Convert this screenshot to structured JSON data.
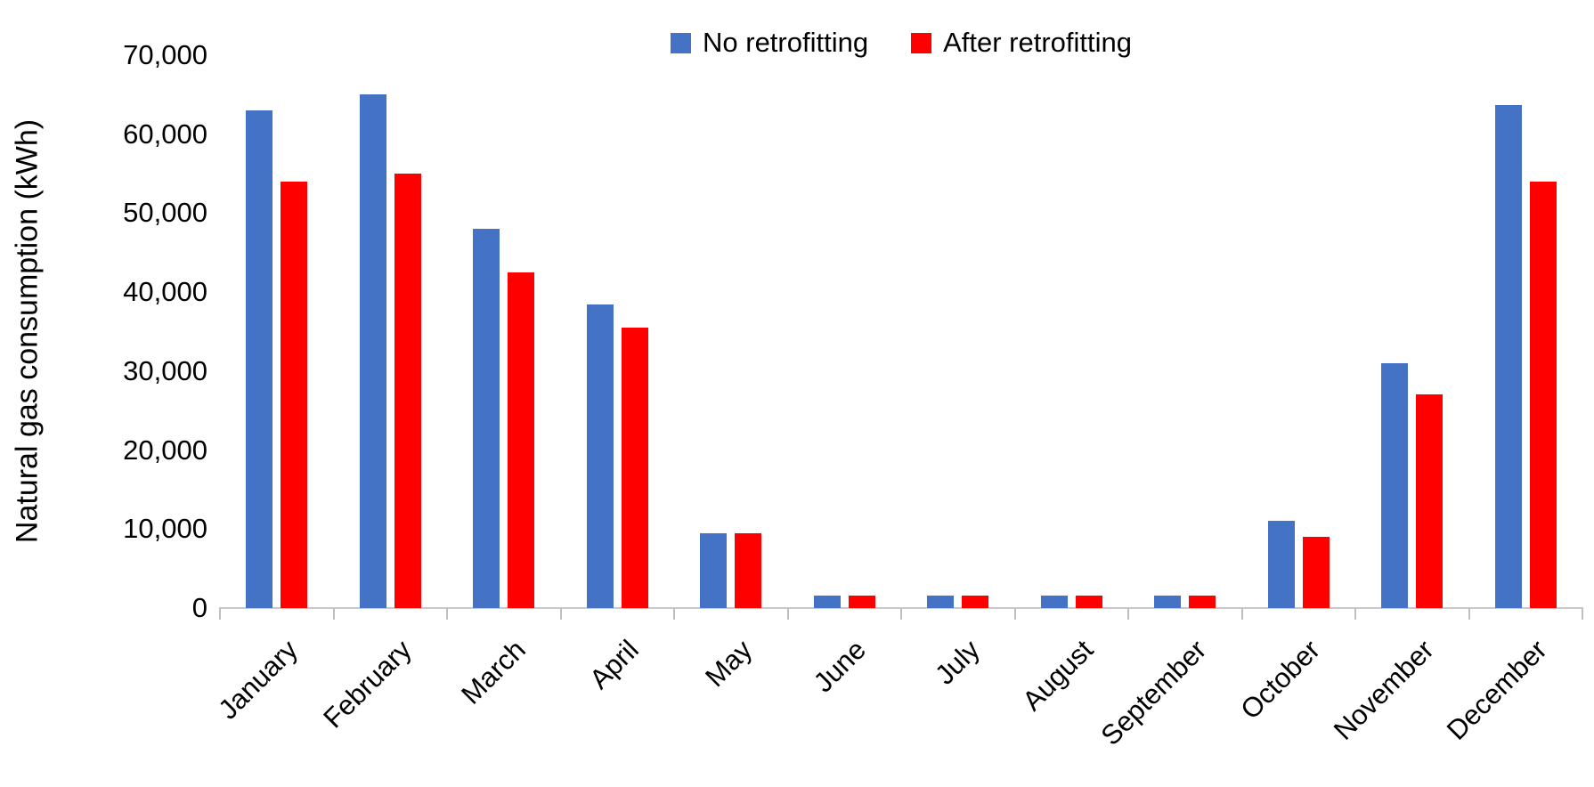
{
  "chart_data": {
    "type": "bar",
    "title": "",
    "ylabel": "Natural gas consumption (kWh)",
    "xlabel": "",
    "categories": [
      "January",
      "February",
      "March",
      "April",
      "May",
      "June",
      "July",
      "August",
      "September",
      "October",
      "November",
      "December"
    ],
    "series": [
      {
        "name": "No retrofitting",
        "color": "#4472C4",
        "values": [
          63000,
          65000,
          48000,
          38400,
          9500,
          1600,
          1600,
          1600,
          1600,
          11000,
          31000,
          63700
        ]
      },
      {
        "name": "After retrofitting",
        "color": "#FF0000",
        "values": [
          54000,
          55000,
          42500,
          35500,
          9500,
          1600,
          1600,
          1600,
          1600,
          9000,
          27000,
          54000
        ]
      }
    ],
    "ylim": [
      0,
      70000
    ],
    "ytick_step": 10000,
    "ytick_labels": [
      "0",
      "10,000",
      "20,000",
      "30,000",
      "40,000",
      "50,000",
      "60,000",
      "70,000"
    ],
    "legend_position": "top",
    "grid": false,
    "axis_color": "#C9C9C9",
    "tick_color": "#BFBFBF",
    "text_color": "#000000"
  }
}
